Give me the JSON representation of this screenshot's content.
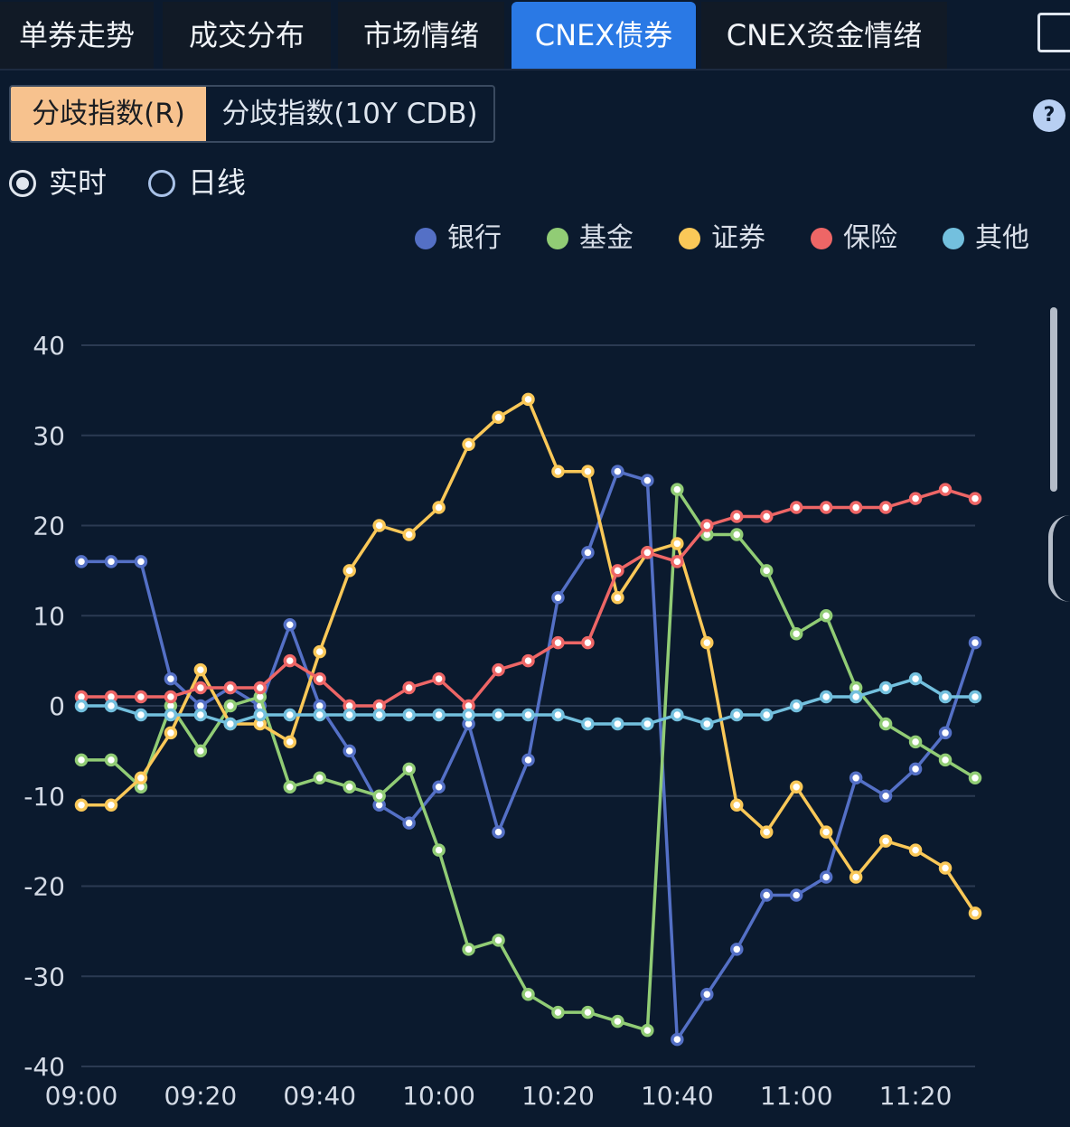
{
  "tabs": [
    {
      "label": "单券走势",
      "active": false
    },
    {
      "label": "成交分布",
      "active": false
    },
    {
      "label": "市场情绪",
      "active": false
    },
    {
      "label": "CNEX债券",
      "active": true
    },
    {
      "label": "CNEX资金情绪",
      "active": false
    }
  ],
  "segment": {
    "active_label": "分歧指数(R)",
    "inactive_label": "分歧指数(10Y CDB)"
  },
  "help_label": "?",
  "radios": {
    "realtime": "实时",
    "daily": "日线"
  },
  "chart_data": {
    "type": "line",
    "x": [
      "09:00",
      "09:05",
      "09:10",
      "09:15",
      "09:20",
      "09:25",
      "09:30",
      "09:35",
      "09:40",
      "09:45",
      "09:50",
      "09:55",
      "10:00",
      "10:05",
      "10:10",
      "10:15",
      "10:20",
      "10:25",
      "10:30",
      "10:35",
      "10:40",
      "10:45",
      "10:50",
      "10:55",
      "11:00",
      "11:05",
      "11:10",
      "11:15",
      "11:20",
      "11:25",
      "11:30"
    ],
    "x_ticks": [
      "09:00",
      "09:20",
      "09:40",
      "10:00",
      "10:20",
      "10:40",
      "11:00",
      "11:20"
    ],
    "y_ticks": [
      "40",
      "30",
      "20",
      "10",
      "0",
      "-10",
      "-20",
      "-30",
      "-40"
    ],
    "ylim": [
      -40,
      40
    ],
    "grid": true,
    "legend_position": "top-right",
    "series": [
      {
        "name": "银行",
        "color": "#5470c6",
        "values": [
          16,
          16,
          16,
          3,
          0,
          2,
          0,
          9,
          0,
          -5,
          -11,
          -13,
          -9,
          -2,
          -14,
          -6,
          12,
          17,
          26,
          25,
          -37,
          -32,
          -27,
          -21,
          -21,
          -19,
          -8,
          -10,
          -7,
          -3,
          7
        ]
      },
      {
        "name": "基金",
        "color": "#91cc75",
        "values": [
          -6,
          -6,
          -9,
          0,
          -5,
          0,
          1,
          -9,
          -8,
          -9,
          -10,
          -7,
          -16,
          -27,
          -26,
          -32,
          -34,
          -34,
          -35,
          -36,
          24,
          19,
          19,
          15,
          8,
          10,
          2,
          -2,
          -4,
          -6,
          -8
        ]
      },
      {
        "name": "证券",
        "color": "#fac858",
        "values": [
          -11,
          -11,
          -8,
          -3,
          4,
          -2,
          -2,
          -4,
          6,
          15,
          20,
          19,
          22,
          29,
          32,
          34,
          26,
          26,
          12,
          17,
          18,
          7,
          -11,
          -14,
          -9,
          -14,
          -19,
          -15,
          -16,
          -18,
          -23
        ]
      },
      {
        "name": "保险",
        "color": "#ee6666",
        "values": [
          1,
          1,
          1,
          1,
          2,
          2,
          2,
          5,
          3,
          0,
          0,
          2,
          3,
          0,
          4,
          5,
          7,
          7,
          15,
          17,
          16,
          20,
          21,
          21,
          22,
          22,
          22,
          22,
          23,
          24,
          23
        ]
      },
      {
        "name": "其他",
        "color": "#73c0de",
        "values": [
          0,
          0,
          -1,
          -1,
          -1,
          -2,
          -1,
          -1,
          -1,
          -1,
          -1,
          -1,
          -1,
          -1,
          -1,
          -1,
          -1,
          -2,
          -2,
          -2,
          -1,
          -2,
          -1,
          -1,
          0,
          1,
          1,
          2,
          3,
          1,
          1
        ]
      }
    ]
  }
}
